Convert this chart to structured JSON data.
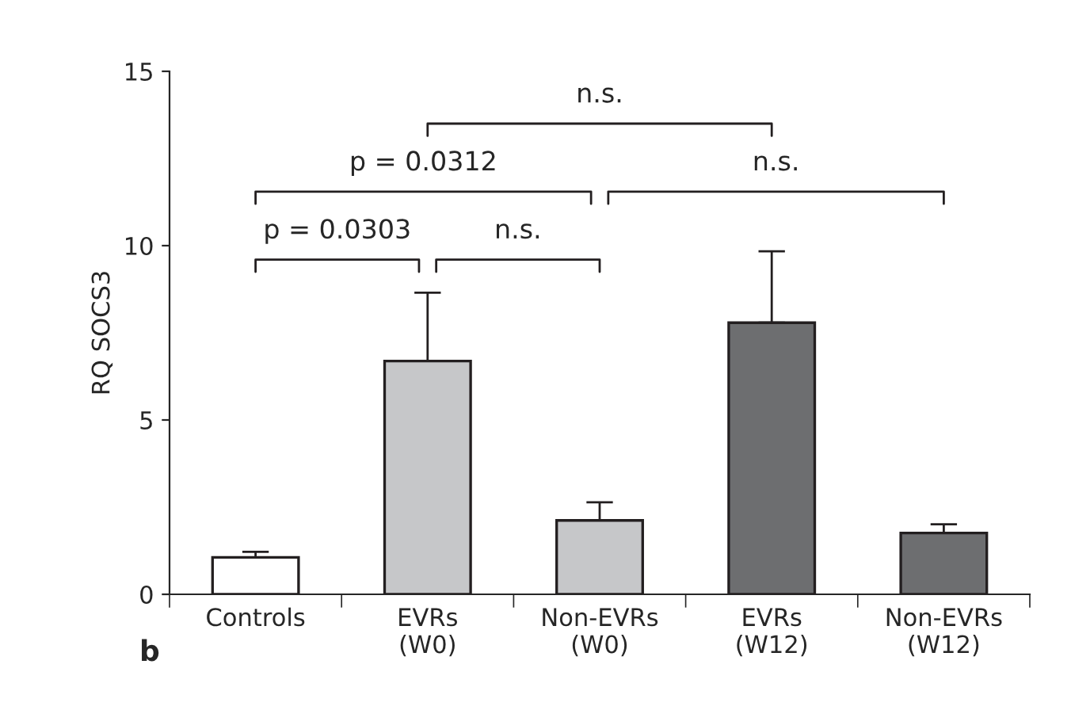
{
  "chart_data": {
    "type": "bar",
    "ylabel": "RQ SOCS3",
    "categories": [
      "Controls",
      "EVRs\n(W0)",
      "Non-EVRs\n(W0)",
      "EVRs\n(W12)",
      "Non-EVRs\n(W12)"
    ],
    "values": [
      1.06,
      6.69,
      2.12,
      7.79,
      1.76
    ],
    "colors": [
      "#ffffff",
      "#c6c7c9",
      "#c6c7c9",
      "#6d6e70",
      "#6d6e70"
    ],
    "errors": [
      [
        1.06,
        1.22
      ],
      [
        6.69,
        8.65
      ],
      [
        2.12,
        2.64
      ],
      [
        7.79,
        9.84
      ],
      [
        1.76,
        2.01
      ]
    ],
    "ylim": [
      0,
      15
    ],
    "yticks": [
      0,
      5,
      10,
      15
    ],
    "grid": false,
    "legend": false,
    "annotations": [
      "p = 0.0303",
      "n.s.",
      "p = 0.0312",
      "n.s.",
      "n.s.",
      "b"
    ]
  }
}
